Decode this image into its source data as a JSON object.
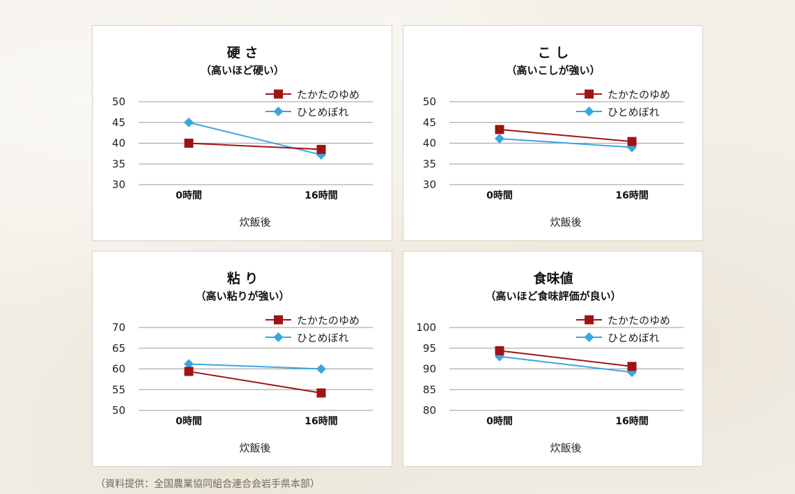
{
  "credit": "（資料提供：全国農業協同組合連合会岩手県本部）",
  "colors": {
    "takata": "#a01313",
    "hitome": "#3aa5e0",
    "grid": "#9a9a9a"
  },
  "chart_data": [
    {
      "type": "line",
      "title": "硬 さ",
      "subtitle": "（高いほど硬い）",
      "categories": [
        "0時間",
        "16時間"
      ],
      "xlabel": "炊飯後",
      "ylim": [
        30,
        50
      ],
      "yticks": [
        50,
        45,
        40,
        35,
        30
      ],
      "legend": "top-right",
      "grid": true,
      "series": [
        {
          "name": "たかたのゆめ",
          "marker": "square",
          "values": [
            40.0,
            38.5
          ]
        },
        {
          "name": "ひとめぼれ",
          "marker": "diamond",
          "values": [
            45.0,
            37.2
          ]
        }
      ]
    },
    {
      "type": "line",
      "title": "こ し",
      "subtitle": "（高いこしが強い）",
      "categories": [
        "0時間",
        "16時間"
      ],
      "xlabel": "炊飯後",
      "ylim": [
        30,
        50
      ],
      "yticks": [
        50,
        45,
        40,
        35,
        30
      ],
      "legend": "top-right",
      "grid": true,
      "series": [
        {
          "name": "たかたのゆめ",
          "marker": "square",
          "values": [
            43.3,
            40.4
          ]
        },
        {
          "name": "ひとめぼれ",
          "marker": "diamond",
          "values": [
            41.1,
            39.0
          ]
        }
      ]
    },
    {
      "type": "line",
      "title": "粘 り",
      "subtitle": "（高い粘りが強い）",
      "categories": [
        "0時間",
        "16時間"
      ],
      "xlabel": "炊飯後",
      "ylim": [
        50,
        70
      ],
      "yticks": [
        70,
        65,
        60,
        55,
        50
      ],
      "legend": "top-right",
      "grid": true,
      "series": [
        {
          "name": "たかたのゆめ",
          "marker": "square",
          "values": [
            59.4,
            54.2
          ]
        },
        {
          "name": "ひとめぼれ",
          "marker": "diamond",
          "values": [
            61.2,
            60.0
          ]
        }
      ]
    },
    {
      "type": "line",
      "title": "食味値",
      "subtitle": "（高いほど食味評価が良い）",
      "categories": [
        "0時間",
        "16時間"
      ],
      "xlabel": "炊飯後",
      "ylim": [
        80,
        100
      ],
      "yticks": [
        100,
        95,
        90,
        85,
        80
      ],
      "legend": "top-right",
      "grid": true,
      "series": [
        {
          "name": "たかたのゆめ",
          "marker": "square",
          "values": [
            94.4,
            90.6
          ]
        },
        {
          "name": "ひとめぼれ",
          "marker": "diamond",
          "values": [
            93.0,
            89.2
          ]
        }
      ]
    }
  ]
}
